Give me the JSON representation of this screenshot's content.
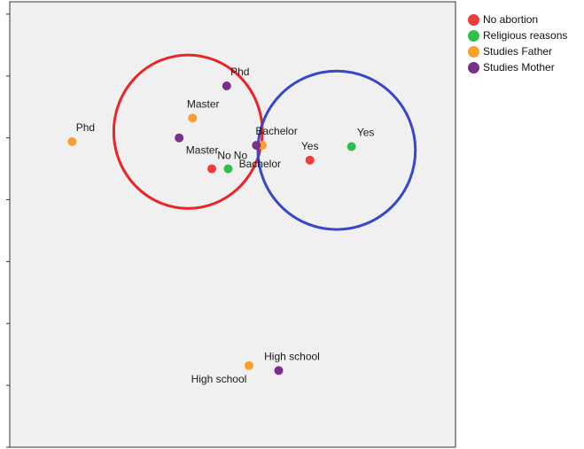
{
  "chart_data": {
    "type": "scatter",
    "title": "",
    "xlabel": "",
    "ylabel": "",
    "xlim": [
      -1.2,
      1.8
    ],
    "ylim": [
      -2.0,
      1.6
    ],
    "grid": false,
    "legend_position": "top-right",
    "series": [
      {
        "name": "No abortion",
        "color": "#ee3b3b",
        "points": [
          {
            "label": "Yes",
            "x": 0.82,
            "y": 0.32
          },
          {
            "label": "No",
            "x": 0.16,
            "y": 0.25
          }
        ]
      },
      {
        "name": "Religious reasons",
        "color": "#2fbf4f",
        "points": [
          {
            "label": "Yes",
            "x": 1.1,
            "y": 0.43
          },
          {
            "label": "No",
            "x": 0.27,
            "y": 0.25
          }
        ]
      },
      {
        "name": "Studies Father",
        "color": "#f7a030",
        "points": [
          {
            "label": "Phd",
            "x": -0.78,
            "y": 0.47
          },
          {
            "label": "Master",
            "x": 0.03,
            "y": 0.66
          },
          {
            "label": "Bachelor",
            "x": 0.5,
            "y": 0.44
          },
          {
            "label": "High school",
            "x": 0.41,
            "y": -1.34
          }
        ]
      },
      {
        "name": "Studies Mother",
        "color": "#7a2f8a",
        "points": [
          {
            "label": "Phd",
            "x": 0.26,
            "y": 0.92
          },
          {
            "label": "Master",
            "x": -0.06,
            "y": 0.5
          },
          {
            "label": "Bachelor",
            "x": 0.46,
            "y": 0.44
          },
          {
            "label": "High school",
            "x": 0.61,
            "y": -1.38
          }
        ]
      }
    ],
    "annotations": [
      {
        "shape": "circle",
        "color": "#e8262a",
        "cx": 0.0,
        "cy": 0.55,
        "rx": 0.5,
        "ry": 0.62
      },
      {
        "shape": "circle",
        "color": "#3846c8",
        "cx": 1.0,
        "cy": 0.4,
        "rx": 0.53,
        "ry": 0.64
      }
    ]
  }
}
